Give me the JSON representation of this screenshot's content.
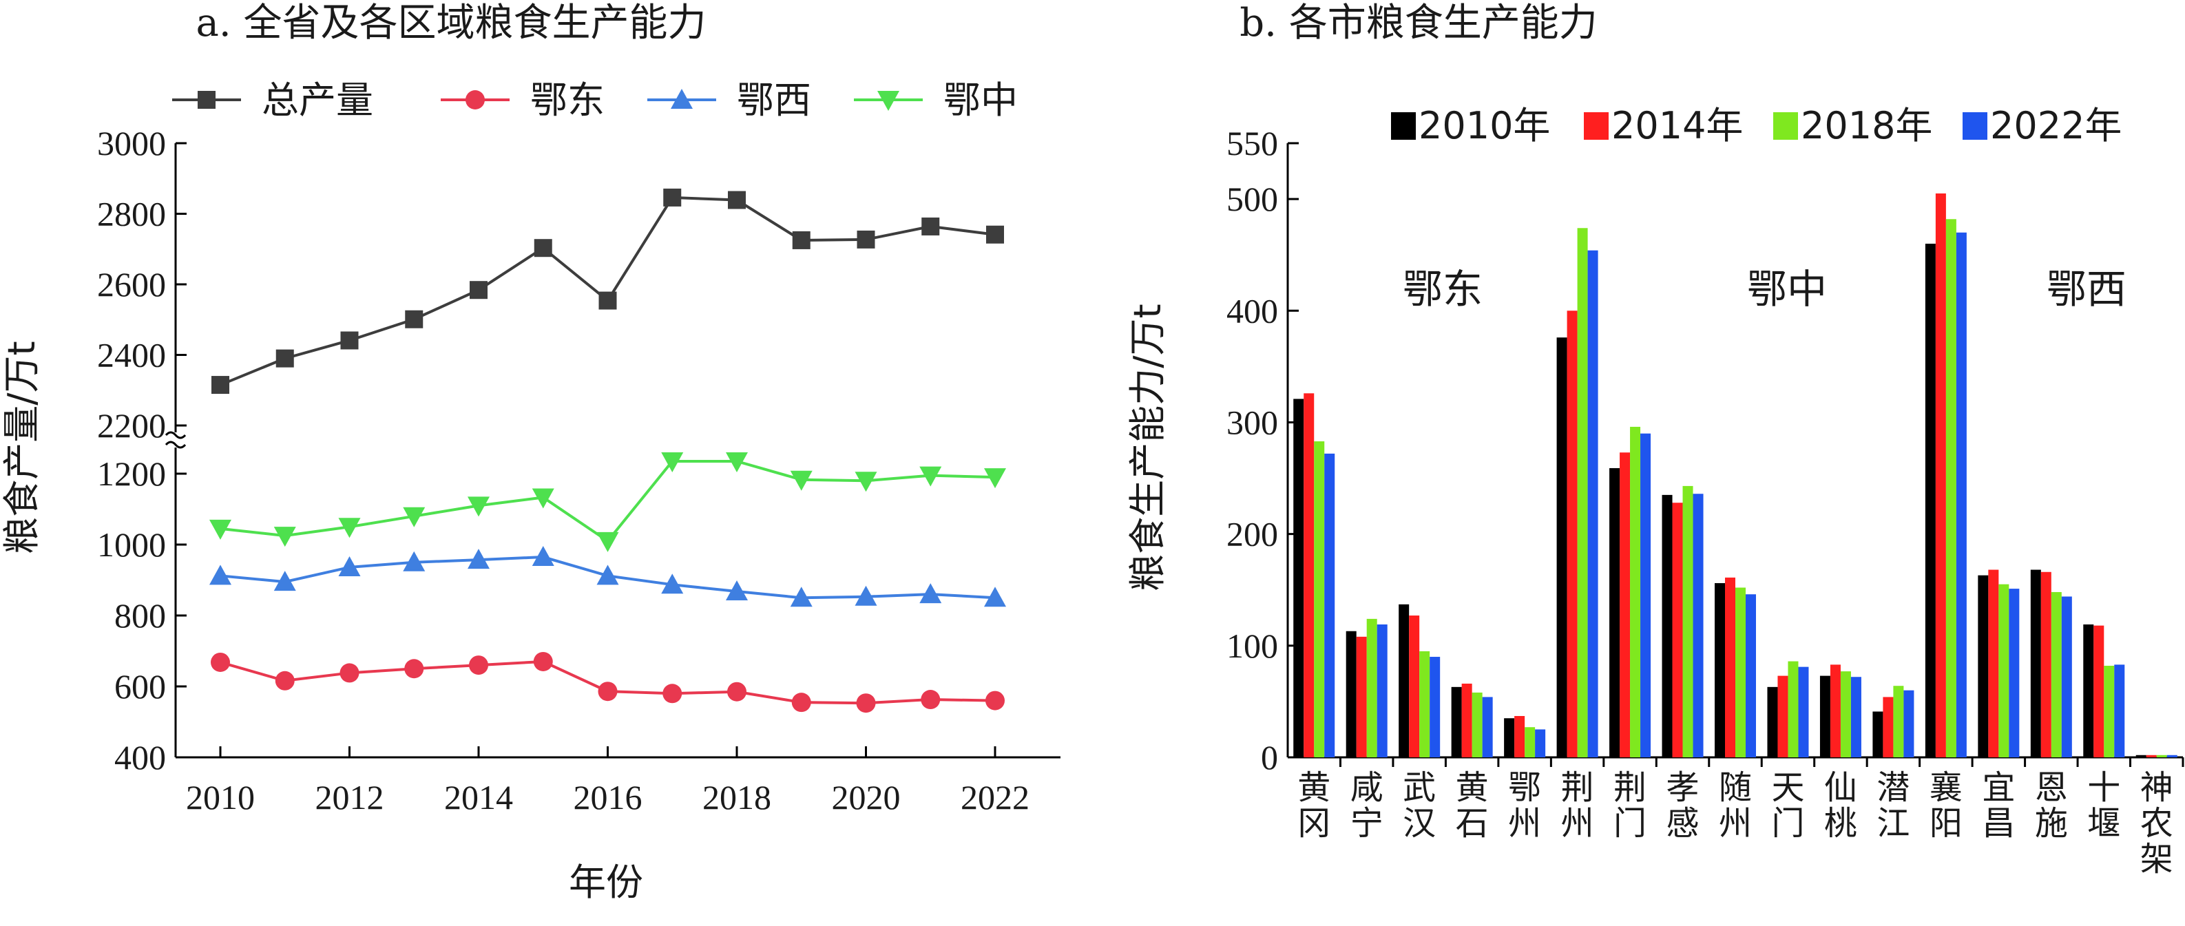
{
  "chart_data": [
    {
      "type": "line",
      "title": "a. 全省及各区域粮食生产能力",
      "xlabel": "年份",
      "ylabel": "粮食产量/万t",
      "x": [
        2010,
        2011,
        2012,
        2013,
        2014,
        2015,
        2016,
        2017,
        2018,
        2019,
        2020,
        2021,
        2022
      ],
      "xticks": [
        "2010",
        "2012",
        "2014",
        "2016",
        "2018",
        "2020",
        "2022"
      ],
      "yticks_upper": [
        "2200",
        "2400",
        "2600",
        "2800",
        "3000"
      ],
      "yticks_lower": [
        "400",
        "600",
        "800",
        "1000",
        "1200"
      ],
      "ylim_upper": [
        2200,
        3000
      ],
      "ylim_lower": [
        400,
        1250
      ],
      "axis_break": true,
      "series": [
        {
          "name": "总产量",
          "color": "#3d3d3d",
          "marker": "square",
          "values": [
            2315,
            2390,
            2441,
            2501,
            2584,
            2703,
            2554,
            2846,
            2839,
            2725,
            2727,
            2764,
            2741
          ]
        },
        {
          "name": "鄂东",
          "color": "#e8384f",
          "marker": "circle",
          "values": [
            668,
            616,
            638,
            650,
            660,
            670,
            586,
            580,
            585,
            555,
            553,
            563,
            560
          ]
        },
        {
          "name": "鄂西",
          "color": "#3f7fe0",
          "marker": "triangle-up",
          "values": [
            912,
            895,
            936,
            950,
            957,
            965,
            912,
            887,
            868,
            850,
            853,
            860,
            850
          ]
        },
        {
          "name": "鄂中",
          "color": "#4ee04e",
          "marker": "triangle-down",
          "values": [
            1045,
            1025,
            1050,
            1080,
            1110,
            1133,
            1010,
            1235,
            1235,
            1183,
            1180,
            1195,
            1190
          ]
        }
      ]
    },
    {
      "type": "bar",
      "title": "b. 各市粮食生产能力",
      "ylabel": "粮食生产能力/万t",
      "ylim": [
        0,
        550
      ],
      "yticks": [
        "0",
        "100",
        "200",
        "300",
        "400",
        "500",
        "550"
      ],
      "categories": [
        "黄冈",
        "咸宁",
        "武汉",
        "黄石",
        "鄂州",
        "荆州",
        "荆门",
        "孝感",
        "随州",
        "天门",
        "仙桃",
        "潜江",
        "襄阳",
        "宜昌",
        "恩施",
        "十堰",
        "神农架"
      ],
      "series": [
        {
          "name": "2010年",
          "color": "#000000",
          "values": [
            321,
            113,
            137,
            63,
            35,
            376,
            259,
            235,
            156,
            63,
            73,
            41,
            460,
            163,
            168,
            119,
            2
          ]
        },
        {
          "name": "2014年",
          "color": "#ff1f1f",
          "values": [
            326,
            108,
            127,
            66,
            37,
            400,
            273,
            228,
            161,
            73,
            83,
            54,
            505,
            168,
            166,
            118,
            2
          ]
        },
        {
          "name": "2018年",
          "color": "#7fe81f",
          "values": [
            283,
            124,
            95,
            58,
            27,
            474,
            296,
            243,
            152,
            86,
            77,
            64,
            482,
            155,
            148,
            82,
            2
          ]
        },
        {
          "name": "2022年",
          "color": "#1f55ee",
          "values": [
            272,
            119,
            90,
            54,
            25,
            454,
            290,
            236,
            146,
            81,
            72,
            60,
            470,
            151,
            144,
            83,
            2
          ]
        }
      ],
      "region_labels": [
        "鄂东",
        "鄂中",
        "鄂西"
      ]
    }
  ]
}
